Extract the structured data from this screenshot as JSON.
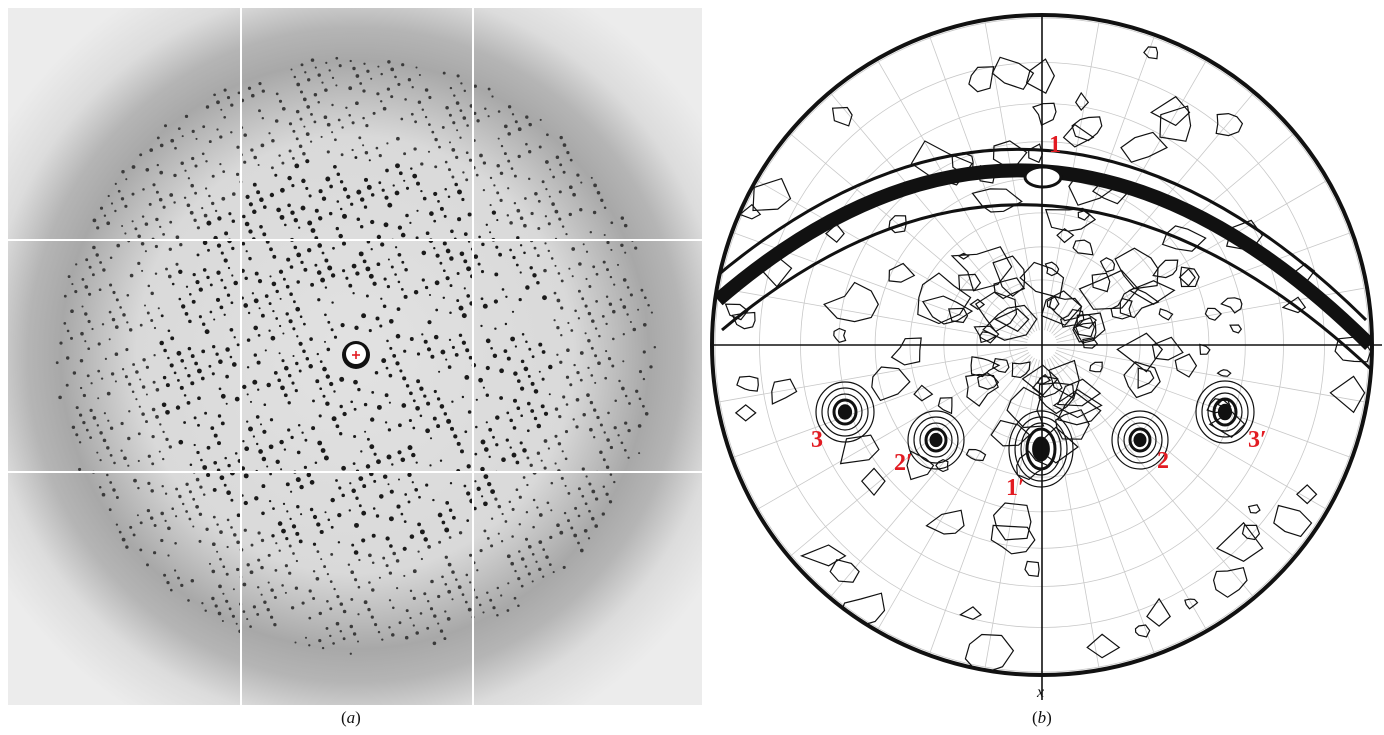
{
  "figure": {
    "panel_a": {
      "caption": "a"
    },
    "panel_b": {
      "caption": "b",
      "axis_label": "x",
      "peak_color": "#e21b22",
      "peaks": [
        {
          "id": "p1",
          "label": "1"
        },
        {
          "id": "p1p",
          "label": "1′"
        },
        {
          "id": "p2",
          "label": "2"
        },
        {
          "id": "p2p",
          "label": "2′"
        },
        {
          "id": "p3",
          "label": "3"
        },
        {
          "id": "p3p",
          "label": "3′"
        }
      ]
    }
  },
  "icons": {
    "beam_center": "red-cross-icon"
  }
}
